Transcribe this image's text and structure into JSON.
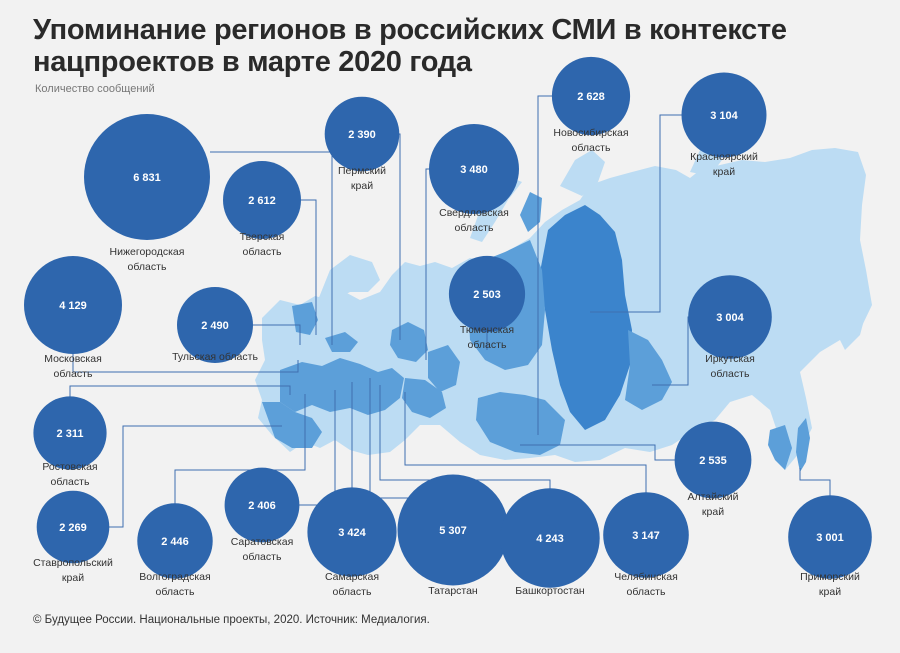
{
  "title_line1": "Упоминание регионов в российских СМИ в контексте",
  "title_line2": "нацпроектов в марте 2020 года",
  "subtitle": "Количество сообщений",
  "source": "© Будущее России. Национальные проекты, 2020. Источник: Медиалогия.",
  "colors": {
    "bubble": "#2e66ad",
    "map_light": "#bcdcf3",
    "map_region": "#5c9fd9",
    "map_dark": "#3b84cc",
    "line": "#3f6fb0"
  },
  "chart_data": {
    "type": "bubble-map",
    "unit": "Количество сообщений",
    "regions": [
      {
        "name_lines": [
          "Нижегородская",
          "область"
        ],
        "value": 6831,
        "value_label": "6 831"
      },
      {
        "name_lines": [
          "Тверская",
          "область"
        ],
        "value": 2612,
        "value_label": "2 612"
      },
      {
        "name_lines": [
          "Пермский",
          "край"
        ],
        "value": 2390,
        "value_label": "2 390"
      },
      {
        "name_lines": [
          "Свердловская",
          "область"
        ],
        "value": 3480,
        "value_label": "3 480"
      },
      {
        "name_lines": [
          "Новосибирская",
          "область"
        ],
        "value": 2628,
        "value_label": "2 628"
      },
      {
        "name_lines": [
          "Красноярский",
          "край"
        ],
        "value": 3104,
        "value_label": "3 104"
      },
      {
        "name_lines": [
          "Московская",
          "область"
        ],
        "value": 4129,
        "value_label": "4 129"
      },
      {
        "name_lines": [
          "Тульская область"
        ],
        "value": 2490,
        "value_label": "2 490"
      },
      {
        "name_lines": [
          "Тюменская",
          "область"
        ],
        "value": 2503,
        "value_label": "2 503"
      },
      {
        "name_lines": [
          "Иркутская",
          "область"
        ],
        "value": 3004,
        "value_label": "3 004"
      },
      {
        "name_lines": [
          "Ростовская",
          "область"
        ],
        "value": 2311,
        "value_label": "2 311"
      },
      {
        "name_lines": [
          "Ставропольский",
          "край"
        ],
        "value": 2269,
        "value_label": "2 269"
      },
      {
        "name_lines": [
          "Волгоградская",
          "область"
        ],
        "value": 2446,
        "value_label": "2 446"
      },
      {
        "name_lines": [
          "Саратовская",
          "область"
        ],
        "value": 2406,
        "value_label": "2 406"
      },
      {
        "name_lines": [
          "Самарская",
          "область"
        ],
        "value": 3424,
        "value_label": "3 424"
      },
      {
        "name_lines": [
          "Татарстан"
        ],
        "value": 5307,
        "value_label": "5 307"
      },
      {
        "name_lines": [
          "Башкортостан"
        ],
        "value": 4243,
        "value_label": "4 243"
      },
      {
        "name_lines": [
          "Челябинская",
          "область"
        ],
        "value": 3147,
        "value_label": "3 147"
      },
      {
        "name_lines": [
          "Алтайский",
          "край"
        ],
        "value": 2535,
        "value_label": "2 535"
      },
      {
        "name_lines": [
          "Приморский",
          "край"
        ],
        "value": 3001,
        "value_label": "3 001"
      }
    ]
  }
}
